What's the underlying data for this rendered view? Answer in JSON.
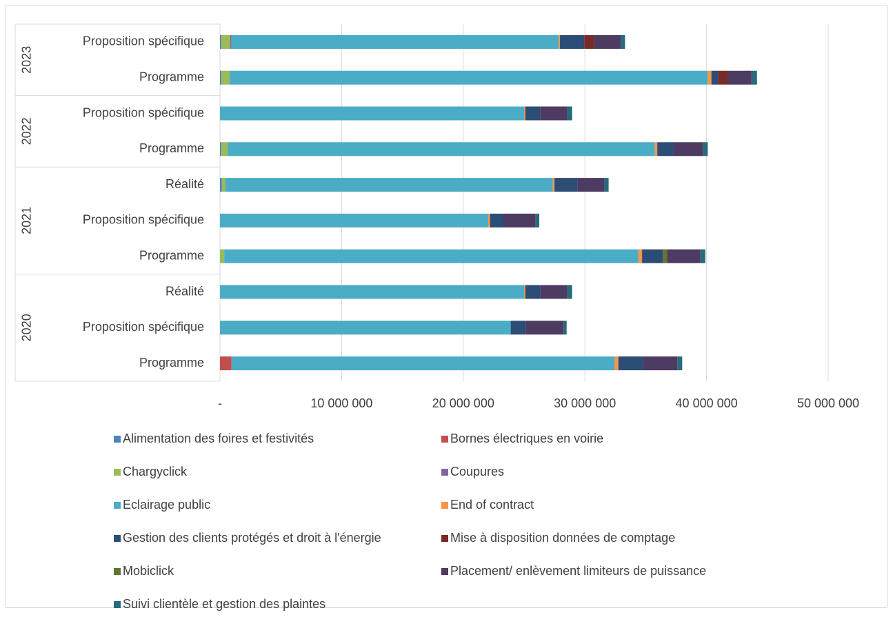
{
  "chart_data": {
    "type": "stacked_bar_horizontal",
    "groups": [
      {
        "name": "2023",
        "categories": [
          "Proposition spécifique",
          "Programme"
        ]
      },
      {
        "name": "2022",
        "categories": [
          "Proposition spécifique",
          "Programme"
        ]
      },
      {
        "name": "2021",
        "categories": [
          "Réalité",
          "Proposition spécifique",
          "Programme"
        ]
      },
      {
        "name": "2020",
        "categories": [
          "Réalité",
          "Proposition spécifique",
          "Programme"
        ]
      }
    ],
    "series": [
      {
        "name": "Alimentation des foires et festivités",
        "color": "#4f81bd",
        "values": [
          100000,
          100000,
          0,
          100000,
          150000,
          0,
          0,
          0,
          0,
          0
        ]
      },
      {
        "name": "Bornes électriques en voirie",
        "color": "#c0504d",
        "values": [
          0,
          0,
          0,
          0,
          0,
          0,
          0,
          0,
          0,
          950000
        ]
      },
      {
        "name": "Chargyclick",
        "color": "#9bbb59",
        "values": [
          750000,
          700000,
          0,
          550000,
          300000,
          0,
          350000,
          0,
          0,
          0
        ]
      },
      {
        "name": "Coupures",
        "color": "#8064a2",
        "values": [
          100000,
          0,
          0,
          0,
          0,
          0,
          0,
          0,
          0,
          0
        ]
      },
      {
        "name": "Eclairage public",
        "color": "#4bacc6",
        "values": [
          26900000,
          39300000,
          25000000,
          35100000,
          26900000,
          22050000,
          34050000,
          25000000,
          23900000,
          31500000
        ]
      },
      {
        "name": "End of contract",
        "color": "#f79646",
        "values": [
          100000,
          300000,
          100000,
          200000,
          150000,
          150000,
          300000,
          100000,
          0,
          300000
        ]
      },
      {
        "name": "Gestion des clients protégés et droit à l'énergie",
        "color": "#2c4d75",
        "values": [
          2000000,
          550000,
          1250000,
          1350000,
          1900000,
          1100000,
          1700000,
          1250000,
          1250000,
          2050000
        ]
      },
      {
        "name": "Mise à disposition données de comptage",
        "color": "#772c2a",
        "values": [
          800000,
          800000,
          0,
          0,
          0,
          0,
          0,
          0,
          0,
          0
        ]
      },
      {
        "name": "Mobiclick",
        "color": "#5f7530",
        "values": [
          0,
          0,
          0,
          0,
          0,
          0,
          350000,
          0,
          0,
          0
        ]
      },
      {
        "name": "Placement/ enlèvement limiteurs de puissance",
        "color": "#4d3b62",
        "values": [
          2200000,
          1950000,
          2200000,
          2400000,
          2200000,
          2650000,
          2750000,
          2200000,
          3100000,
          2800000
        ]
      },
      {
        "name": "Suivi clientèle et gestion des plaintes",
        "color": "#276a7c",
        "values": [
          350000,
          450000,
          400000,
          400000,
          350000,
          300000,
          400000,
          400000,
          250000,
          400000
        ]
      }
    ],
    "xlim": [
      0,
      50000000
    ],
    "xticks": [
      {
        "value": 0,
        "label": "-"
      },
      {
        "value": 10000000,
        "label": "10 000 000"
      },
      {
        "value": 20000000,
        "label": "20 000 000"
      },
      {
        "value": 30000000,
        "label": "30 000 000"
      },
      {
        "value": 40000000,
        "label": "40 000 000"
      },
      {
        "value": 50000000,
        "label": "50 000 000"
      }
    ],
    "grid": true
  }
}
